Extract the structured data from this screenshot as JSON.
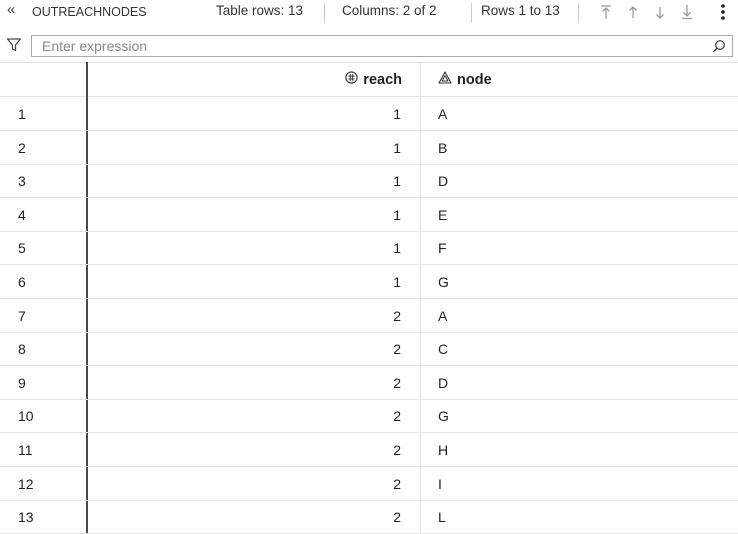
{
  "toolbar": {
    "collapse_glyph": "«",
    "table_name": "OUTREACHNODES",
    "table_rows": "Table rows: 13",
    "columns": "Columns: 2 of 2",
    "rows_range": "Rows 1 to 13"
  },
  "filter": {
    "placeholder": "Enter expression"
  },
  "columns": [
    {
      "label": "reach",
      "type_icon": "numeric-icon"
    },
    {
      "label": "node",
      "type_icon": "character-icon"
    }
  ],
  "rows": [
    {
      "idx": "1",
      "reach": "1",
      "node": "A"
    },
    {
      "idx": "2",
      "reach": "1",
      "node": "B"
    },
    {
      "idx": "3",
      "reach": "1",
      "node": "D"
    },
    {
      "idx": "4",
      "reach": "1",
      "node": "E"
    },
    {
      "idx": "5",
      "reach": "1",
      "node": "F"
    },
    {
      "idx": "6",
      "reach": "1",
      "node": "G"
    },
    {
      "idx": "7",
      "reach": "2",
      "node": "A"
    },
    {
      "idx": "8",
      "reach": "2",
      "node": "C"
    },
    {
      "idx": "9",
      "reach": "2",
      "node": "D"
    },
    {
      "idx": "10",
      "reach": "2",
      "node": "G"
    },
    {
      "idx": "11",
      "reach": "2",
      "node": "H"
    },
    {
      "idx": "12",
      "reach": "2",
      "node": "I"
    },
    {
      "idx": "13",
      "reach": "2",
      "node": "L"
    }
  ]
}
